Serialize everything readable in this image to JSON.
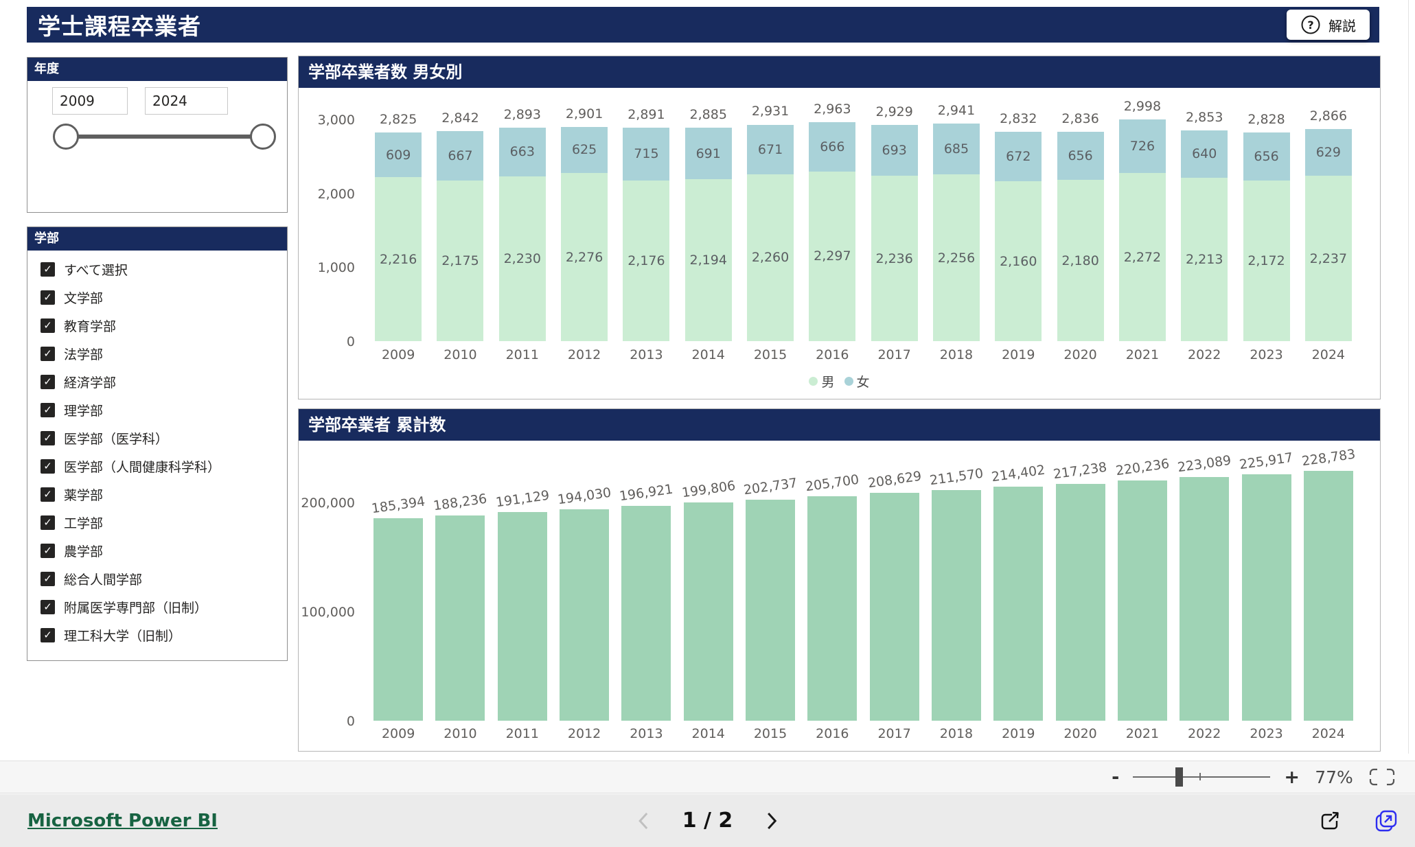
{
  "header": {
    "title": "学士課程卒業者",
    "help_button_label": "解説"
  },
  "filters": {
    "year": {
      "title": "年度",
      "start": "2009",
      "end": "2024"
    },
    "faculty": {
      "title": "学部",
      "items": [
        "すべて選択",
        "文学部",
        "教育学部",
        "法学部",
        "経済学部",
        "理学部",
        "医学部（医学科）",
        "医学部（人間健康科学科）",
        "薬学部",
        "工学部",
        "農学部",
        "総合人間学部",
        "附属医学専門部（旧制）",
        "理工科大学（旧制）"
      ],
      "all_checked": true
    }
  },
  "chart_data": [
    {
      "type": "bar",
      "stacked": true,
      "title": "学部卒業者数 男女別",
      "categories": [
        "2009",
        "2010",
        "2011",
        "2012",
        "2013",
        "2014",
        "2015",
        "2016",
        "2017",
        "2018",
        "2019",
        "2020",
        "2021",
        "2022",
        "2023",
        "2024"
      ],
      "series": [
        {
          "name": "男",
          "color": "#cbedd3",
          "values": [
            2216,
            2175,
            2230,
            2276,
            2176,
            2194,
            2260,
            2297,
            2236,
            2256,
            2160,
            2180,
            2272,
            2213,
            2172,
            2237
          ]
        },
        {
          "name": "女",
          "color": "#a9d2d8",
          "values": [
            609,
            667,
            663,
            625,
            715,
            691,
            671,
            666,
            693,
            685,
            672,
            656,
            726,
            640,
            656,
            629
          ]
        }
      ],
      "totals": [
        2825,
        2842,
        2893,
        2901,
        2891,
        2885,
        2931,
        2963,
        2929,
        2941,
        2832,
        2836,
        2998,
        2853,
        2828,
        2866
      ],
      "xlabel": "",
      "ylabel": "",
      "ylim": [
        0,
        3000
      ],
      "yticks": [
        3000,
        2000,
        1000,
        0
      ],
      "grid": false,
      "legend_position": "bottom"
    },
    {
      "type": "bar",
      "stacked": false,
      "title": "学部卒業者 累計数",
      "categories": [
        "2009",
        "2010",
        "2011",
        "2012",
        "2013",
        "2014",
        "2015",
        "2016",
        "2017",
        "2018",
        "2019",
        "2020",
        "2021",
        "2022",
        "2023",
        "2024"
      ],
      "values": [
        185394,
        188236,
        191129,
        194030,
        196921,
        199806,
        202737,
        205700,
        208629,
        211570,
        214402,
        217238,
        220236,
        223089,
        225917,
        228783
      ],
      "color": "#9fd3b5",
      "xlabel": "",
      "ylabel": "",
      "ylim": [
        0,
        250000
      ],
      "yticks": [
        200000,
        100000,
        0
      ],
      "grid": false,
      "legend_position": "none"
    }
  ],
  "zoom_bar": {
    "zoom_out_label": "-",
    "zoom_in_label": "+",
    "zoom_level": "77%"
  },
  "footer": {
    "brand": "Microsoft Power BI",
    "page_indicator": "1 / 2"
  }
}
